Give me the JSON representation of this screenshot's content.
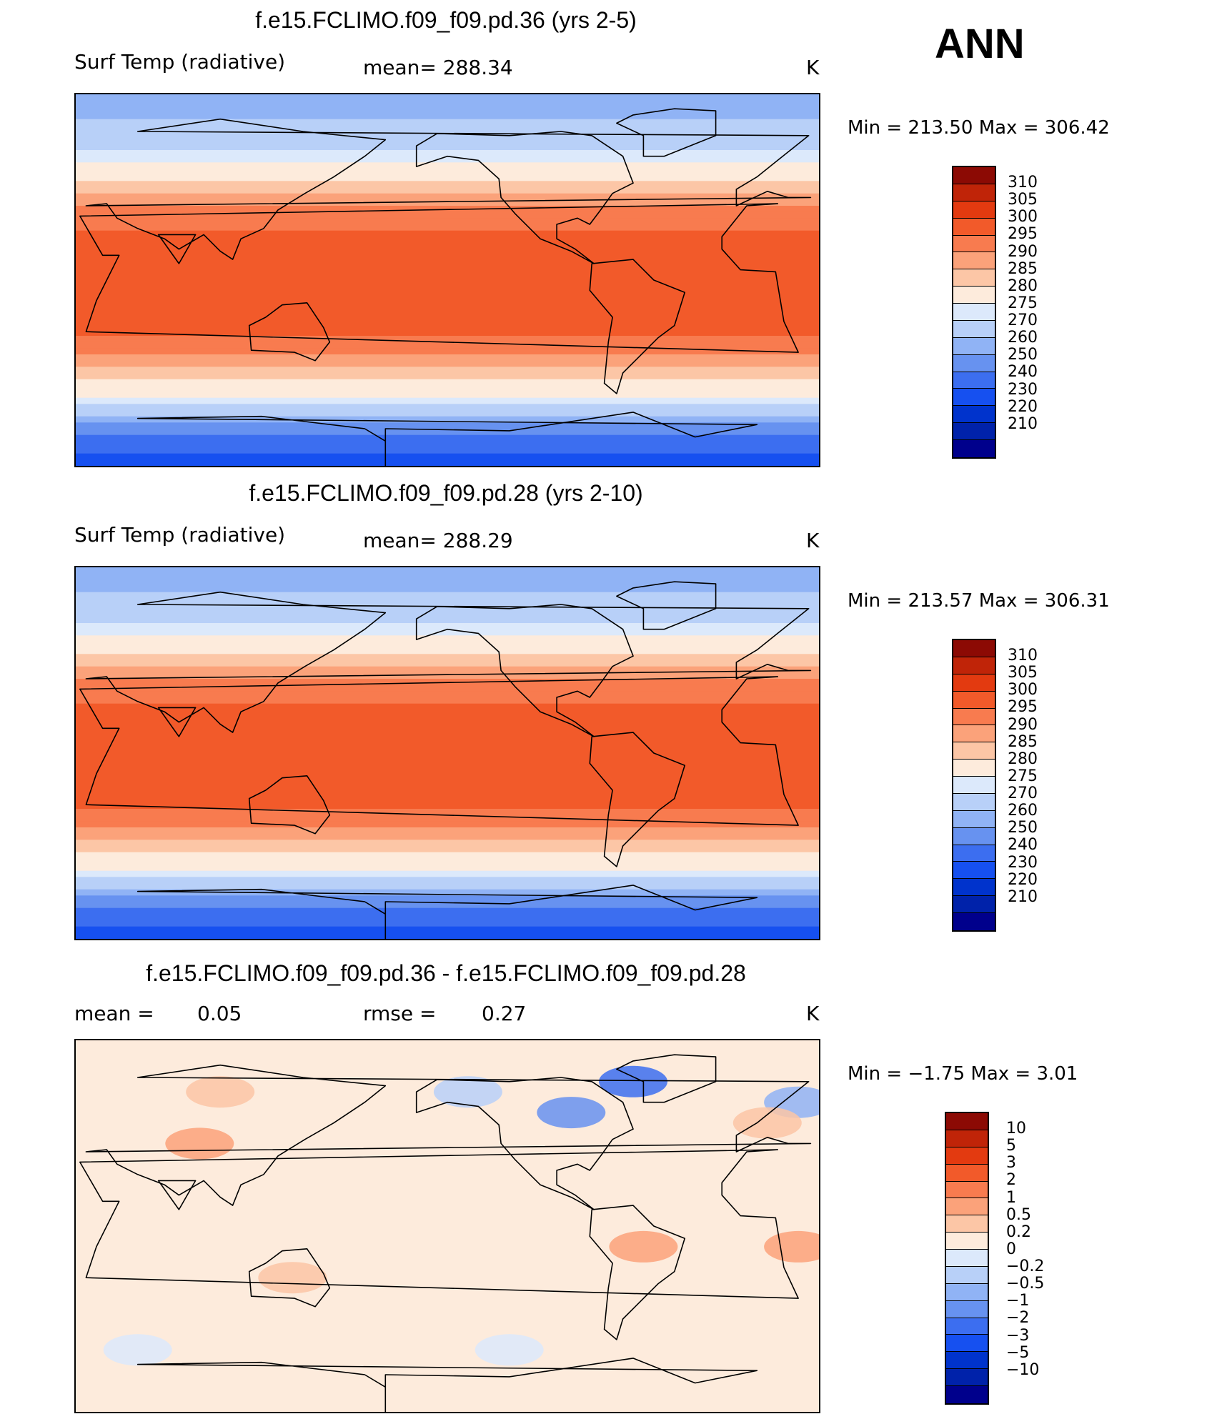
{
  "season": "ANN",
  "colors": {
    "abs": [
      "#00008c",
      "#0022aa",
      "#0033cc",
      "#1650f0",
      "#3c6ef0",
      "#6792f0",
      "#90b3f5",
      "#b8d0f8",
      "#dce9fb",
      "#fdebdc",
      "#fcc6a6",
      "#fba27a",
      "#f87b4f",
      "#f25a2a",
      "#e33a10",
      "#c02408",
      "#8c0a04"
    ],
    "diff": [
      "#00008c",
      "#0022aa",
      "#0033cc",
      "#1650f0",
      "#3c6ef0",
      "#6792f0",
      "#90b3f5",
      "#b8d0f8",
      "#dce9fb",
      "#fdebdc",
      "#fcc6a6",
      "#fba27a",
      "#f87b4f",
      "#f25a2a",
      "#e33a10",
      "#c02408",
      "#8c0a04"
    ]
  },
  "panels": [
    {
      "title": "f.e15.FCLIMO.f09_f09.pd.36 (yrs 2-5)",
      "left_label": "Surf Temp (radiative)",
      "mid_label": "mean= 288.34",
      "units": "K",
      "minmax": "Min = 213.50 Max = 306.42",
      "levels": [
        "310",
        "305",
        "300",
        "295",
        "290",
        "285",
        "280",
        "275",
        "270",
        "260",
        "250",
        "240",
        "230",
        "220",
        "210"
      ]
    },
    {
      "title": "f.e15.FCLIMO.f09_f09.pd.28 (yrs 2-10)",
      "left_label": "Surf Temp (radiative)",
      "mid_label": "mean= 288.29",
      "units": "K",
      "minmax": "Min = 213.57 Max = 306.31",
      "levels": [
        "310",
        "305",
        "300",
        "295",
        "290",
        "285",
        "280",
        "275",
        "270",
        "260",
        "250",
        "240",
        "230",
        "220",
        "210"
      ]
    },
    {
      "title": "f.e15.FCLIMO.f09_f09.pd.36 - f.e15.FCLIMO.f09_f09.pd.28",
      "left_label": "mean =",
      "left_value": "0.05",
      "mid_label": "rmse =",
      "mid_value": "0.27",
      "units": "K",
      "minmax": "Min = −1.75 Max = 3.01",
      "levels": [
        "10",
        "5",
        "3",
        "2",
        "1",
        "0.5",
        "0.2",
        "0",
        "−0.2",
        "−0.5",
        "−1",
        "−2",
        "−3",
        "−5",
        "−10"
      ]
    }
  ],
  "chart_data": [
    {
      "type": "heatmap",
      "title": "f.e15.FCLIMO.f09_f09.pd.36 (yrs 2-5)",
      "variable": "Surf Temp (radiative)",
      "units": "K",
      "mean": 288.34,
      "min": 213.5,
      "max": 306.42,
      "contour_levels": [
        210,
        220,
        230,
        240,
        250,
        260,
        270,
        275,
        280,
        285,
        290,
        295,
        300,
        305,
        310
      ],
      "zonal_profile_by_latitude": {
        "lat": [
          90,
          75,
          60,
          45,
          30,
          15,
          0,
          -15,
          -30,
          -45,
          -60,
          -75,
          -90
        ],
        "value": [
          255,
          262,
          272,
          283,
          293,
          298,
          300,
          299,
          294,
          283,
          272,
          240,
          225
        ]
      }
    },
    {
      "type": "heatmap",
      "title": "f.e15.FCLIMO.f09_f09.pd.28 (yrs 2-10)",
      "variable": "Surf Temp (radiative)",
      "units": "K",
      "mean": 288.29,
      "min": 213.57,
      "max": 306.31,
      "contour_levels": [
        210,
        220,
        230,
        240,
        250,
        260,
        270,
        275,
        280,
        285,
        290,
        295,
        300,
        305,
        310
      ],
      "zonal_profile_by_latitude": {
        "lat": [
          90,
          75,
          60,
          45,
          30,
          15,
          0,
          -15,
          -30,
          -45,
          -60,
          -75,
          -90
        ],
        "value": [
          255,
          262,
          272,
          283,
          293,
          298,
          300,
          299,
          294,
          283,
          272,
          240,
          225
        ]
      }
    },
    {
      "type": "heatmap",
      "title": "f.e15.FCLIMO.f09_f09.pd.36 - f.e15.FCLIMO.f09_f09.pd.28",
      "units": "K",
      "mean": 0.05,
      "rmse": 0.27,
      "min": -1.75,
      "max": 3.01,
      "contour_levels": [
        -10,
        -5,
        -3,
        -2,
        -1,
        -0.5,
        -0.2,
        0,
        0.2,
        0.5,
        1,
        2,
        3,
        5,
        10
      ]
    }
  ]
}
